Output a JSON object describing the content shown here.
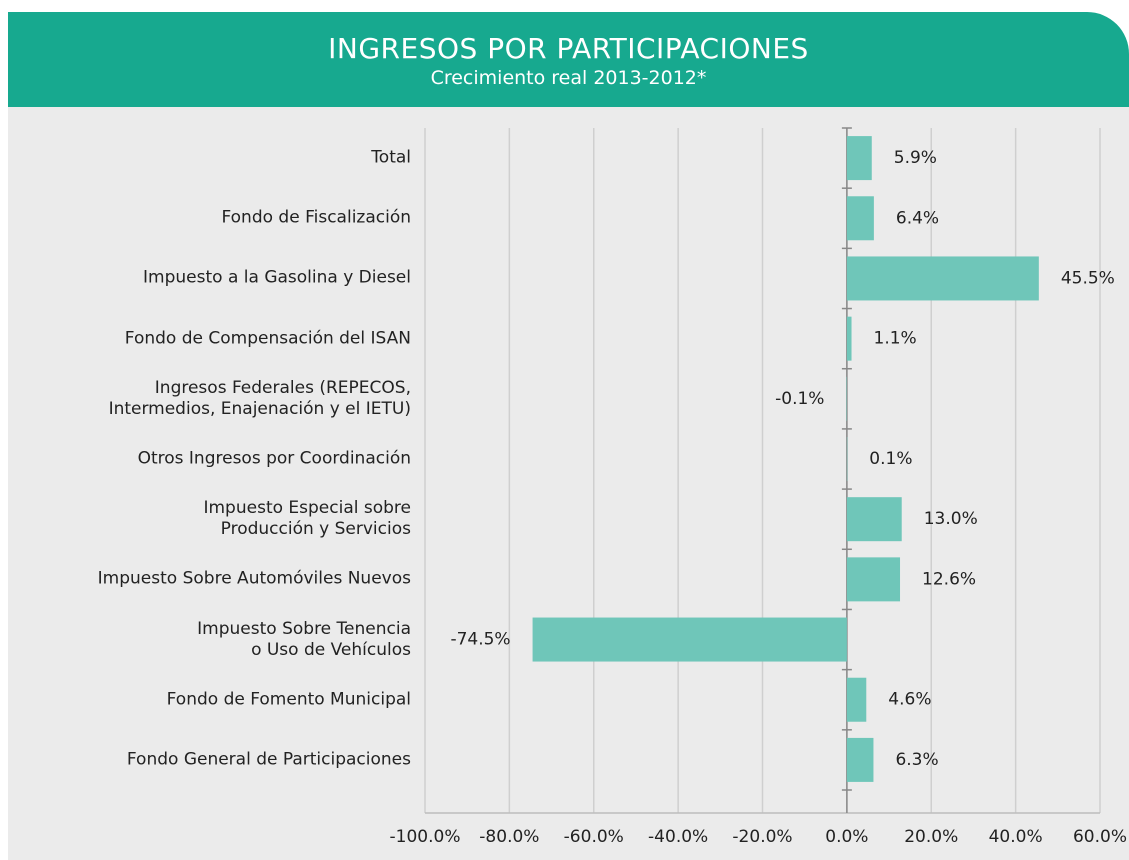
{
  "chart_data": {
    "type": "bar",
    "orientation": "horizontal",
    "title": "INGRESOS POR PARTICIPACIONES",
    "subtitle": "Crecimiento real 2013-2012*",
    "categories": [
      "Total",
      "Fondo de Fiscalización",
      "Impuesto a la Gasolina y Diesel",
      "Fondo de Compensación del ISAN",
      "Ingresos Federales (REPECOS,\nIntermedios, Enajenación y el IETU)",
      "Otros Ingresos por Coordinación",
      "Impuesto Especial sobre\nProducción y Servicios",
      "Impuesto Sobre Automóviles Nuevos",
      "Impuesto Sobre Tenencia\no Uso de Vehículos",
      "Fondo de Fomento Municipal",
      "Fondo General de Participaciones"
    ],
    "values": [
      5.9,
      6.4,
      45.5,
      1.1,
      -0.1,
      0.1,
      13.0,
      12.6,
      -74.5,
      4.6,
      6.3
    ],
    "value_labels": [
      "5.9%",
      "6.4%",
      "45.5%",
      "1.1%",
      "-0.1%",
      "0.1%",
      "13.0%",
      "12.6%",
      "-74.5%",
      "4.6%",
      "6.3%"
    ],
    "color": "#6fc6b9",
    "xlim": [
      -100,
      60
    ],
    "xticks": [
      {
        "value": -100,
        "label": "-100.0%"
      },
      {
        "value": -80,
        "label": "-80.0%"
      },
      {
        "value": -60,
        "label": "-60.0%"
      },
      {
        "value": -40,
        "label": "-40.0%"
      },
      {
        "value": -20,
        "label": "-20.0%"
      },
      {
        "value": 0,
        "label": "0.0%"
      },
      {
        "value": 20,
        "label": "20.0%"
      },
      {
        "value": 40,
        "label": "40.0%"
      },
      {
        "value": 60,
        "label": "60.0%"
      }
    ],
    "grid": true
  }
}
